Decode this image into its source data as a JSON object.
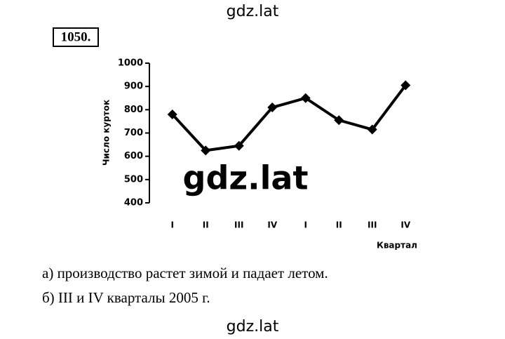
{
  "header": "gdz.lat",
  "problem_number": "1050.",
  "chart_data": {
    "type": "line",
    "categories": [
      "I",
      "II",
      "III",
      "IV",
      "I",
      "II",
      "III",
      "IV"
    ],
    "values": [
      780,
      625,
      645,
      810,
      850,
      755,
      715,
      905
    ],
    "color": "#000000",
    "ylim": [
      400,
      1000
    ],
    "yticks": [
      400,
      500,
      600,
      700,
      800,
      900,
      1000
    ],
    "y_label": "Число курток",
    "x_label": "Квартал"
  },
  "watermark": "gdz.lat",
  "answers": [
    "а) производство растет зимой и падает летом.",
    "б) III и IV кварталы 2005 г."
  ],
  "footer": "gdz.lat"
}
